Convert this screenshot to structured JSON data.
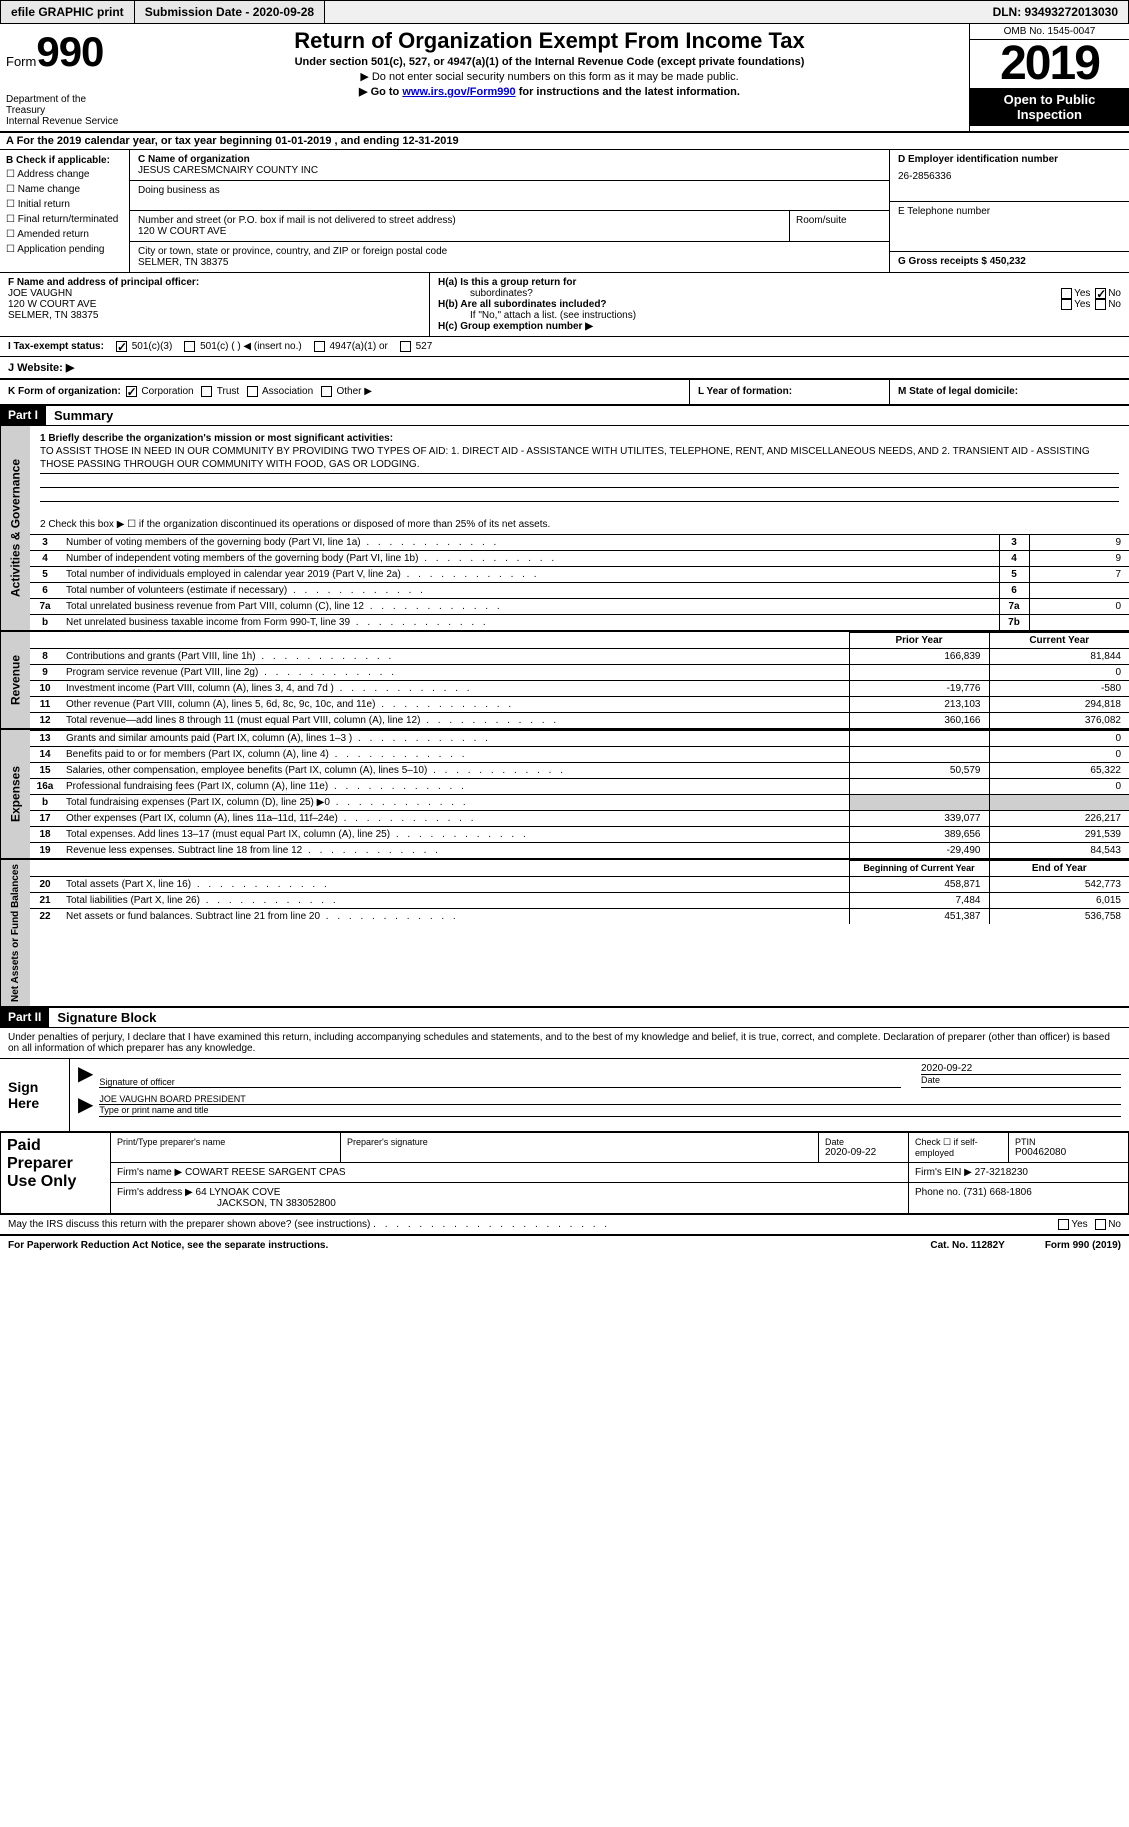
{
  "topbar": {
    "efile": "efile GRAPHIC print",
    "submission_label": "Submission Date - 2020-09-28",
    "dln_label": "DLN: 93493272013030"
  },
  "header": {
    "form_prefix": "Form",
    "form_number": "990",
    "dept1": "Department of the Treasury",
    "dept2": "Internal Revenue Service",
    "title": "Return of Organization Exempt From Income Tax",
    "subtitle": "Under section 501(c), 527, or 4947(a)(1) of the Internal Revenue Code (except private foundations)",
    "note1": "▶ Do not enter social security numbers on this form as it may be made public.",
    "note2_pre": "▶ Go to ",
    "note2_link": "www.irs.gov/Form990",
    "note2_post": " for instructions and the latest information.",
    "omb": "OMB No. 1545-0047",
    "year": "2019",
    "open1": "Open to Public",
    "open2": "Inspection"
  },
  "period": {
    "text": "A For the 2019 calendar year, or tax year beginning 01-01-2019   , and ending 12-31-2019"
  },
  "section_b": {
    "title": "B Check if applicable:",
    "opts": [
      "☐ Address change",
      "☐ Name change",
      "☐ Initial return",
      "☐ Final return/terminated",
      "☐ Amended return",
      "☐ Application pending"
    ]
  },
  "section_c": {
    "name_label": "C Name of organization",
    "name": "JESUS CARESMCNAIRY COUNTY INC",
    "dba_label": "Doing business as",
    "addr_label": "Number and street (or P.O. box if mail is not delivered to street address)",
    "addr": "120 W COURT AVE",
    "room_label": "Room/suite",
    "city_label": "City or town, state or province, country, and ZIP or foreign postal code",
    "city": "SELMER, TN  38375"
  },
  "section_d": {
    "label": "D Employer identification number",
    "value": "26-2856336"
  },
  "section_e": {
    "label": "E Telephone number"
  },
  "section_g": {
    "label": "G Gross receipts $ 450,232"
  },
  "section_f": {
    "label": "F Name and address of principal officer:",
    "line1": "JOE VAUGHN",
    "line2": "120 W COURT AVE",
    "line3": "SELMER, TN  38375"
  },
  "section_h": {
    "ha_label": "H(a)  Is this a group return for",
    "ha_sub": "subordinates?",
    "hb_label": "H(b)  Are all subordinates included?",
    "hb_note": "If \"No,\" attach a list. (see instructions)",
    "hc_label": "H(c)  Group exemption number ▶",
    "yes": "Yes",
    "no": "No"
  },
  "tax_status": {
    "label": "I  Tax-exempt status:",
    "opt1": "501(c)(3)",
    "opt2": "501(c) (  ) ◀ (insert no.)",
    "opt3": "4947(a)(1) or",
    "opt4": "527"
  },
  "website": {
    "label": "J  Website: ▶"
  },
  "section_k": {
    "label": "K Form of organization:",
    "corp": "Corporation",
    "trust": "Trust",
    "assoc": "Association",
    "other": "Other ▶"
  },
  "section_l": {
    "label": "L Year of formation:"
  },
  "section_m": {
    "label": "M State of legal domicile:"
  },
  "part1": {
    "num": "Part I",
    "title": "Summary",
    "q1_label": "1  Briefly describe the organization's mission or most significant activities:",
    "mission": "TO ASSIST THOSE IN NEED IN OUR COMMUNITY BY PROVIDING TWO TYPES OF AID: 1. DIRECT AID - ASSISTANCE WITH UTILITES, TELEPHONE, RENT, AND MISCELLANEOUS NEEDS, AND 2. TRANSIENT AID - ASSISTING THOSE PASSING THROUGH OUR COMMUNITY WITH FOOD, GAS OR LODGING.",
    "q2": "2   Check this box ▶ ☐  if the organization discontinued its operations or disposed of more than 25% of its net assets.",
    "lines": [
      {
        "n": "3",
        "t": "Number of voting members of the governing body (Part VI, line 1a)",
        "box": "3",
        "v": "9"
      },
      {
        "n": "4",
        "t": "Number of independent voting members of the governing body (Part VI, line 1b)",
        "box": "4",
        "v": "9"
      },
      {
        "n": "5",
        "t": "Total number of individuals employed in calendar year 2019 (Part V, line 2a)",
        "box": "5",
        "v": "7"
      },
      {
        "n": "6",
        "t": "Total number of volunteers (estimate if necessary)",
        "box": "6",
        "v": ""
      },
      {
        "n": "7a",
        "t": "Total unrelated business revenue from Part VIII, column (C), line 12",
        "box": "7a",
        "v": "0"
      },
      {
        "n": "b",
        "t": "Net unrelated business taxable income from Form 990-T, line 39",
        "box": "7b",
        "v": ""
      }
    ]
  },
  "fin_headers": {
    "prior": "Prior Year",
    "current": "Current Year"
  },
  "revenue": {
    "tab": "Revenue",
    "rows": [
      {
        "n": "8",
        "t": "Contributions and grants (Part VIII, line 1h)",
        "p": "166,839",
        "c": "81,844"
      },
      {
        "n": "9",
        "t": "Program service revenue (Part VIII, line 2g)",
        "p": "",
        "c": "0"
      },
      {
        "n": "10",
        "t": "Investment income (Part VIII, column (A), lines 3, 4, and 7d )",
        "p": "-19,776",
        "c": "-580"
      },
      {
        "n": "11",
        "t": "Other revenue (Part VIII, column (A), lines 5, 6d, 8c, 9c, 10c, and 11e)",
        "p": "213,103",
        "c": "294,818"
      },
      {
        "n": "12",
        "t": "Total revenue—add lines 8 through 11 (must equal Part VIII, column (A), line 12)",
        "p": "360,166",
        "c": "376,082"
      }
    ]
  },
  "expenses": {
    "tab": "Expenses",
    "rows": [
      {
        "n": "13",
        "t": "Grants and similar amounts paid (Part IX, column (A), lines 1–3 )",
        "p": "",
        "c": "0"
      },
      {
        "n": "14",
        "t": "Benefits paid to or for members (Part IX, column (A), line 4)",
        "p": "",
        "c": "0"
      },
      {
        "n": "15",
        "t": "Salaries, other compensation, employee benefits (Part IX, column (A), lines 5–10)",
        "p": "50,579",
        "c": "65,322"
      },
      {
        "n": "16a",
        "t": "Professional fundraising fees (Part IX, column (A), line 11e)",
        "p": "",
        "c": "0"
      },
      {
        "n": "b",
        "t": "Total fundraising expenses (Part IX, column (D), line 25) ▶0",
        "p": "GRAY",
        "c": "GRAY"
      },
      {
        "n": "17",
        "t": "Other expenses (Part IX, column (A), lines 11a–11d, 11f–24e)",
        "p": "339,077",
        "c": "226,217"
      },
      {
        "n": "18",
        "t": "Total expenses. Add lines 13–17 (must equal Part IX, column (A), line 25)",
        "p": "389,656",
        "c": "291,539"
      },
      {
        "n": "19",
        "t": "Revenue less expenses. Subtract line 18 from line 12",
        "p": "-29,490",
        "c": "84,543"
      }
    ]
  },
  "netassets": {
    "tab": "Net Assets or Fund Balances",
    "hdr_prior": "Beginning of Current Year",
    "hdr_current": "End of Year",
    "rows": [
      {
        "n": "20",
        "t": "Total assets (Part X, line 16)",
        "p": "458,871",
        "c": "542,773"
      },
      {
        "n": "21",
        "t": "Total liabilities (Part X, line 26)",
        "p": "7,484",
        "c": "6,015"
      },
      {
        "n": "22",
        "t": "Net assets or fund balances. Subtract line 21 from line 20",
        "p": "451,387",
        "c": "536,758"
      }
    ]
  },
  "part2": {
    "num": "Part II",
    "title": "Signature Block",
    "intro": "Under penalties of perjury, I declare that I have examined this return, including accompanying schedules and statements, and to the best of my knowledge and belief, it is true, correct, and complete. Declaration of preparer (other than officer) is based on all information of which preparer has any knowledge.",
    "sign_here": "Sign Here",
    "sig_officer_label": "Signature of officer",
    "sig_date": "2020-09-22",
    "date_label": "Date",
    "name_title": "JOE VAUGHN  BOARD PRESIDENT",
    "name_title_label": "Type or print name and title"
  },
  "preparer": {
    "left": "Paid Preparer Use Only",
    "h1": "Print/Type preparer's name",
    "h2": "Preparer's signature",
    "h3_l": "Date",
    "h3_v": "2020-09-22",
    "h4": "Check ☐ if self-employed",
    "h5_l": "PTIN",
    "h5_v": "P00462080",
    "firm_name_l": "Firm's name    ▶",
    "firm_name": "COWART REESE SARGENT CPAS",
    "firm_ein_l": "Firm's EIN ▶",
    "firm_ein": "27-3218230",
    "firm_addr_l": "Firm's address ▶",
    "firm_addr1": "64 LYNOAK COVE",
    "firm_addr2": "JACKSON, TN  383052800",
    "phone_l": "Phone no.",
    "phone": "(731) 668-1806"
  },
  "discuss": {
    "text": "May the IRS discuss this return with the preparer shown above? (see instructions)",
    "yes": "Yes",
    "no": "No"
  },
  "footer": {
    "left": "For Paperwork Reduction Act Notice, see the separate instructions.",
    "mid": "Cat. No. 11282Y",
    "right": "Form 990 (2019)"
  },
  "vtabs": {
    "gov": "Activities & Governance"
  }
}
